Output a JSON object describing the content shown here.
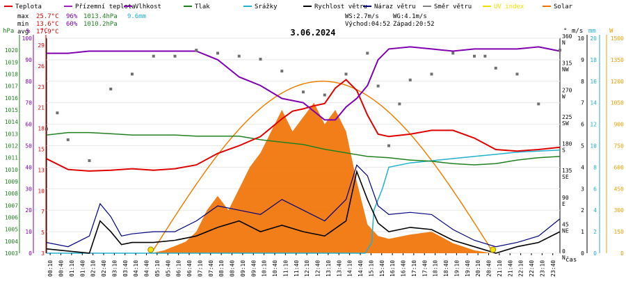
{
  "chart_data": {
    "type": "line",
    "title": "3.06.2024",
    "legend": [
      {
        "name": "Teplota",
        "color": "#e00000"
      },
      {
        "name": "Přízemní teplota",
        "color": "#a020c0"
      },
      {
        "name": "Vlhkost",
        "color": "#8000b0"
      },
      {
        "name": "Tlak",
        "color": "#208020"
      },
      {
        "name": "Srážky",
        "color": "#20b0d0"
      },
      {
        "name": "Rychlost větru",
        "color": "#000000"
      },
      {
        "name": "Náraz větru",
        "color": "#000080"
      },
      {
        "name": "Směr větru",
        "color": "#808080"
      },
      {
        "name": "UV index",
        "color": "#f0e000"
      },
      {
        "name": "Solar",
        "color": "#f07000"
      }
    ],
    "stats": {
      "max": {
        "label": "max",
        "temp": "25.7°C",
        "hum": "96%",
        "press": "1013.4hPa",
        "rain": "9.6mm"
      },
      "min": {
        "label": "min",
        "temp": "13.6°C",
        "hum": "60%",
        "press": "1010.2hPa"
      },
      "avg": {
        "label": "avg",
        "temp": "17.9°C"
      }
    },
    "info": {
      "ws": "WS:2.7m/s",
      "wg": "WG:4.1m/s",
      "sunrise": "Východ:04:52",
      "sunset": "Západ:20:52"
    },
    "axis_units": {
      "press": "hPa",
      "hum": "%",
      "temp": "°C",
      "deg": "°",
      "ms": "m/s",
      "mm": "mm",
      "w": "W"
    },
    "xlabel": "čas",
    "x_ticks": [
      "00:10",
      "00:40",
      "01:10",
      "01:40",
      "02:10",
      "02:40",
      "03:10",
      "03:40",
      "04:10",
      "04:40",
      "05:10",
      "05:40",
      "06:10",
      "06:40",
      "07:10",
      "07:40",
      "08:10",
      "08:40",
      "09:10",
      "09:40",
      "10:10",
      "10:40",
      "11:10",
      "11:40",
      "12:10",
      "12:40",
      "13:10",
      "13:40",
      "14:10",
      "14:40",
      "15:10",
      "15:40",
      "16:10",
      "16:40",
      "17:10",
      "17:40",
      "18:10",
      "18:40",
      "19:10",
      "19:40",
      "20:10",
      "20:40",
      "21:10",
      "21:40",
      "22:10",
      "22:40",
      "23:10",
      "23:40"
    ],
    "axes": {
      "press": {
        "min": 1003,
        "max": 1021,
        "ticks": [
          "1020",
          "1019",
          "1018",
          "1017",
          "1016",
          "1015",
          "1014",
          "1013",
          "1012",
          "1011",
          "1010",
          "1009",
          "1008",
          "1007",
          "1006",
          "1005",
          "1004",
          "1003"
        ]
      },
      "hum": {
        "min": 0,
        "max": 100,
        "ticks": [
          "100",
          "90",
          "80",
          "70",
          "60",
          "50",
          "40",
          "30",
          "20",
          "10",
          "0"
        ]
      },
      "temp": {
        "min": 3,
        "max": 31,
        "ticks": [
          "29",
          "26",
          "23",
          "21",
          "18",
          "15",
          "13",
          "10",
          "7",
          "5",
          "3"
        ]
      },
      "dir": {
        "min": 0,
        "max": 360,
        "ticks": [
          {
            "v": 360,
            "d": "N"
          },
          {
            "v": 315,
            "d": "NW"
          },
          {
            "v": 270,
            "d": "W"
          },
          {
            "v": 225,
            "d": "SW"
          },
          {
            "v": 180,
            "d": "S"
          },
          {
            "v": 135,
            "d": "SE"
          },
          {
            "v": 90,
            "d": "E"
          },
          {
            "v": 45,
            "d": "NE"
          },
          {
            "v": 0,
            "d": "N"
          }
        ]
      },
      "ms": {
        "min": 0,
        "max": 10,
        "ticks": [
          "10",
          "9",
          "8",
          "7",
          "6",
          "5",
          "4",
          "3",
          "2",
          "1",
          "0"
        ]
      },
      "mm": {
        "min": 0,
        "max": 20,
        "ticks": [
          "20",
          "18",
          "16",
          "14",
          "12",
          "10",
          "8",
          "6",
          "4",
          "2",
          "0"
        ]
      },
      "w": {
        "min": 0,
        "max": 1500,
        "ticks": [
          "1500",
          "1350",
          "1200",
          "1050",
          "900",
          "750",
          "600",
          "450",
          "300",
          "150",
          "0"
        ]
      }
    },
    "series": {
      "temp": [
        [
          0,
          15.3
        ],
        [
          1,
          13.9
        ],
        [
          2,
          13.7
        ],
        [
          3,
          13.8
        ],
        [
          4,
          14.0
        ],
        [
          5,
          13.8
        ],
        [
          6,
          14.0
        ],
        [
          7,
          14.5
        ],
        [
          8,
          16.0
        ],
        [
          9,
          17.0
        ],
        [
          10,
          18.2
        ],
        [
          11,
          20.5
        ],
        [
          11.5,
          21.5
        ],
        [
          12,
          21.8
        ],
        [
          12.5,
          22.2
        ],
        [
          13,
          22.5
        ],
        [
          13.5,
          24.5
        ],
        [
          14,
          25.6
        ],
        [
          14.5,
          24.2
        ],
        [
          15,
          21.0
        ],
        [
          15.5,
          18.5
        ],
        [
          16,
          18.2
        ],
        [
          17,
          18.5
        ],
        [
          18,
          19.0
        ],
        [
          19,
          19.0
        ],
        [
          20,
          18.0
        ],
        [
          21,
          16.5
        ],
        [
          22,
          16.3
        ],
        [
          23,
          16.5
        ],
        [
          24,
          16.8
        ]
      ],
      "hum": [
        [
          0,
          93
        ],
        [
          1,
          93
        ],
        [
          2,
          94
        ],
        [
          3,
          94
        ],
        [
          4,
          94
        ],
        [
          5,
          94
        ],
        [
          6,
          94
        ],
        [
          7,
          94
        ],
        [
          8,
          90
        ],
        [
          9,
          82
        ],
        [
          10,
          78
        ],
        [
          11,
          72
        ],
        [
          12,
          70
        ],
        [
          12.5,
          66
        ],
        [
          13,
          62
        ],
        [
          13.5,
          62
        ],
        [
          14,
          68
        ],
        [
          14.5,
          72
        ],
        [
          15,
          78
        ],
        [
          15.5,
          90
        ],
        [
          16,
          95
        ],
        [
          17,
          96
        ],
        [
          18,
          95
        ],
        [
          19,
          94
        ],
        [
          20,
          95
        ],
        [
          21,
          95
        ],
        [
          22,
          95
        ],
        [
          23,
          96
        ],
        [
          24,
          94
        ]
      ],
      "press": [
        [
          0,
          1012.9
        ],
        [
          1,
          1013.1
        ],
        [
          2,
          1013.1
        ],
        [
          3,
          1013.0
        ],
        [
          4,
          1012.9
        ],
        [
          5,
          1012.9
        ],
        [
          6,
          1012.9
        ],
        [
          7,
          1012.8
        ],
        [
          8,
          1012.8
        ],
        [
          9,
          1012.8
        ],
        [
          10,
          1012.5
        ],
        [
          11,
          1012.3
        ],
        [
          12,
          1012.1
        ],
        [
          13,
          1011.7
        ],
        [
          14,
          1011.4
        ],
        [
          15,
          1011.1
        ],
        [
          16,
          1011.0
        ],
        [
          17,
          1010.8
        ],
        [
          18,
          1010.7
        ],
        [
          19,
          1010.5
        ],
        [
          20,
          1010.4
        ],
        [
          21,
          1010.5
        ],
        [
          22,
          1010.8
        ],
        [
          23,
          1011.0
        ],
        [
          24,
          1011.1
        ]
      ],
      "rain": [
        [
          0,
          0
        ],
        [
          14.9,
          0
        ],
        [
          15.2,
          1
        ],
        [
          15.3,
          4
        ],
        [
          15.5,
          5
        ],
        [
          15.7,
          6
        ],
        [
          16,
          8
        ],
        [
          17,
          8.4
        ],
        [
          18,
          8.6
        ],
        [
          19,
          8.8
        ],
        [
          20,
          9.0
        ],
        [
          21,
          9.2
        ],
        [
          22,
          9.4
        ],
        [
          23,
          9.5
        ],
        [
          24,
          9.6
        ]
      ],
      "wind": [
        [
          0,
          0.2
        ],
        [
          1,
          0.1
        ],
        [
          2,
          0.0
        ],
        [
          2.5,
          1.5
        ],
        [
          3,
          1.0
        ],
        [
          3.5,
          0.4
        ],
        [
          4,
          0.5
        ],
        [
          5,
          0.5
        ],
        [
          6,
          0.6
        ],
        [
          7,
          0.8
        ],
        [
          8,
          1.2
        ],
        [
          9,
          1.5
        ],
        [
          10,
          1.0
        ],
        [
          11,
          1.3
        ],
        [
          12,
          1.0
        ],
        [
          13,
          0.8
        ],
        [
          14,
          1.5
        ],
        [
          14.5,
          3.8
        ],
        [
          15,
          2.5
        ],
        [
          15.5,
          1.4
        ],
        [
          16,
          1.0
        ],
        [
          17,
          1.2
        ],
        [
          18,
          1.1
        ],
        [
          19,
          0.6
        ],
        [
          20,
          0.3
        ],
        [
          21,
          0.0
        ],
        [
          22,
          0.3
        ],
        [
          23,
          0.5
        ],
        [
          24,
          1.0
        ]
      ],
      "gust": [
        [
          0,
          0.5
        ],
        [
          1,
          0.3
        ],
        [
          2,
          0.8
        ],
        [
          2.5,
          2.3
        ],
        [
          3,
          1.7
        ],
        [
          3.5,
          0.8
        ],
        [
          4,
          0.9
        ],
        [
          5,
          1.0
        ],
        [
          6,
          1.0
        ],
        [
          7,
          1.5
        ],
        [
          8,
          2.2
        ],
        [
          9,
          2.0
        ],
        [
          10,
          1.8
        ],
        [
          11,
          2.5
        ],
        [
          12,
          2.0
        ],
        [
          13,
          1.5
        ],
        [
          14,
          2.5
        ],
        [
          14.5,
          4.1
        ],
        [
          15,
          3.6
        ],
        [
          15.5,
          2.2
        ],
        [
          16,
          1.8
        ],
        [
          17,
          1.9
        ],
        [
          18,
          1.8
        ],
        [
          19,
          1.1
        ],
        [
          20,
          0.6
        ],
        [
          21,
          0.3
        ],
        [
          22,
          0.5
        ],
        [
          23,
          0.8
        ],
        [
          24,
          1.6
        ]
      ],
      "solar": [
        [
          0,
          0
        ],
        [
          4.9,
          0
        ],
        [
          5.5,
          20
        ],
        [
          6,
          50
        ],
        [
          6.5,
          80
        ],
        [
          7,
          150
        ],
        [
          7.5,
          300
        ],
        [
          8,
          400
        ],
        [
          8.5,
          300
        ],
        [
          9,
          450
        ],
        [
          9.5,
          600
        ],
        [
          10,
          700
        ],
        [
          10.5,
          850
        ],
        [
          11,
          1000
        ],
        [
          11.5,
          850
        ],
        [
          12,
          950
        ],
        [
          12.5,
          1050
        ],
        [
          13,
          900
        ],
        [
          13.5,
          1000
        ],
        [
          14,
          850
        ],
        [
          14.5,
          500
        ],
        [
          15,
          200
        ],
        [
          15.5,
          120
        ],
        [
          16,
          100
        ],
        [
          17,
          130
        ],
        [
          18,
          150
        ],
        [
          19,
          70
        ],
        [
          20,
          20
        ],
        [
          20.8,
          0
        ],
        [
          24,
          0
        ]
      ],
      "solar_clear": [
        [
          4.9,
          0
        ],
        [
          13,
          1200
        ],
        [
          20.9,
          0
        ]
      ],
      "dir": [
        [
          0,
          208
        ],
        [
          0.5,
          235
        ],
        [
          1,
          190
        ],
        [
          2,
          155
        ],
        [
          3,
          275
        ],
        [
          4,
          300
        ],
        [
          5,
          330
        ],
        [
          6,
          330
        ],
        [
          7,
          340
        ],
        [
          8,
          335
        ],
        [
          9,
          330
        ],
        [
          10,
          325
        ],
        [
          11,
          305
        ],
        [
          12,
          270
        ],
        [
          13,
          265
        ],
        [
          14,
          300
        ],
        [
          15,
          335
        ],
        [
          15.5,
          280
        ],
        [
          16,
          180
        ],
        [
          16.5,
          250
        ],
        [
          17,
          290
        ],
        [
          18,
          300
        ],
        [
          19,
          335
        ],
        [
          20,
          330
        ],
        [
          20.5,
          330
        ],
        [
          21,
          310
        ],
        [
          22,
          300
        ],
        [
          23,
          250
        ],
        [
          24,
          340
        ]
      ]
    }
  }
}
